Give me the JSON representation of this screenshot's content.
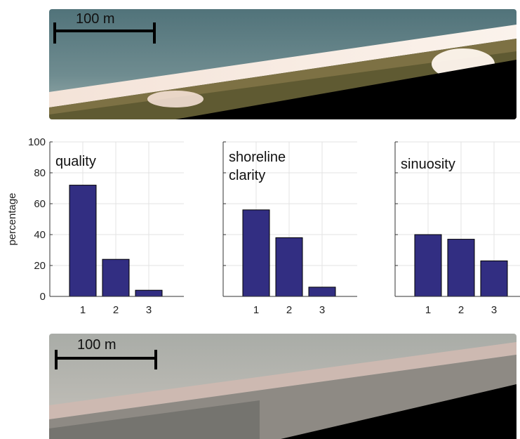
{
  "scalebar": {
    "top_label": "100 m",
    "bottom_label": "100 m"
  },
  "colors": {
    "bar_fill": "#322e82",
    "bar_stroke": "#000000",
    "grid": "#e3e3e3",
    "axis": "#333333"
  },
  "chart_data": [
    {
      "type": "bar",
      "title": "quality",
      "categories": [
        "1",
        "2",
        "3"
      ],
      "values": [
        72,
        24,
        4
      ],
      "ylabel": "percentage",
      "ylim": [
        0,
        100
      ],
      "yticks": [
        "0",
        "20",
        "40",
        "60",
        "80",
        "100"
      ],
      "grid": true
    },
    {
      "type": "bar",
      "title": "shoreline clarity",
      "title_lines": [
        "shoreline",
        "clarity"
      ],
      "categories": [
        "1",
        "2",
        "3"
      ],
      "values": [
        56,
        38,
        6
      ],
      "ylim": [
        0,
        100
      ],
      "grid": true
    },
    {
      "type": "bar",
      "title": "sinuosity",
      "categories": [
        "1",
        "2",
        "3"
      ],
      "values": [
        40,
        37,
        23
      ],
      "ylim": [
        0,
        100
      ],
      "grid": true
    }
  ]
}
